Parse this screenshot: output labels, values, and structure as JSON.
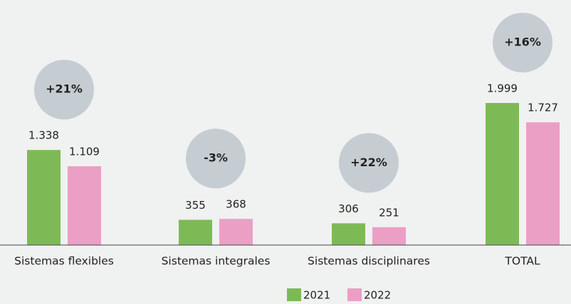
{
  "chart_data": {
    "type": "bar",
    "categories": [
      "Sistemas flexibles",
      "Sistemas integrales",
      "Sistemas disciplinares",
      "TOTAL"
    ],
    "series": [
      {
        "name": "2021",
        "color": "#7dba55",
        "values": [
          1338,
          355,
          306,
          1999
        ],
        "value_labels": [
          "1.338",
          "355",
          "306",
          "1.999"
        ]
      },
      {
        "name": "2022",
        "color": "#eb9fc4",
        "values": [
          1109,
          368,
          251,
          1727
        ],
        "value_labels": [
          "1.109",
          "368",
          "251",
          "1.727"
        ]
      }
    ],
    "annotations": [
      "+21%",
      "-3%",
      "+22%",
      "+16%"
    ],
    "annotation_color": "#c5cdd3"
  }
}
